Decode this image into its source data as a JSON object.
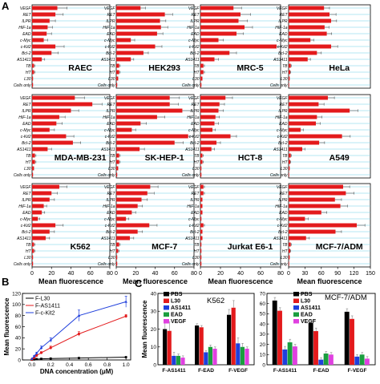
{
  "panel_labels": {
    "A": "A",
    "B": "B",
    "C": "C"
  },
  "chart_data": [
    {
      "type": "bar",
      "orientation": "horizontal",
      "panel": "A",
      "categories": [
        "VEGF",
        "RET",
        "ILPR",
        "HIF-1a",
        "EAD",
        "c-Myc",
        "c-Kit2",
        "Bcl-2",
        "AS1411",
        "TB",
        "HT",
        "L30",
        "Cells only"
      ],
      "xlabel": "Mean fluorescence",
      "grid": true,
      "bar_color": "#e31a1c",
      "grid_color": "#6fd0e8",
      "columns": [
        {
          "xlim": [
            0,
            80
          ],
          "xticks": [
            "0",
            "20",
            "40",
            "60",
            "80"
          ]
        },
        {
          "xlim": [
            0,
            80
          ],
          "xticks": [
            "0",
            "20",
            "40",
            "60",
            "80"
          ]
        },
        {
          "xlim": [
            0,
            80
          ],
          "xticks": [
            "0",
            "20",
            "40",
            "60",
            "80"
          ]
        },
        {
          "xlim": [
            0,
            150
          ],
          "xticks": [
            "0",
            "30",
            "60",
            "90",
            "120",
            "150"
          ]
        }
      ],
      "panels": [
        {
          "title": "RAEC",
          "values": [
            26,
            24,
            18,
            16,
            15,
            12,
            24,
            20,
            10,
            2,
            2,
            1,
            1
          ],
          "errors": [
            10,
            8,
            6,
            5,
            5,
            4,
            9,
            7,
            3,
            1,
            1,
            0.5,
            0.5
          ]
        },
        {
          "title": "HEK293",
          "values": [
            25,
            50,
            45,
            46,
            42,
            15,
            40,
            28,
            15,
            3,
            3,
            2,
            1
          ],
          "errors": [
            5,
            8,
            6,
            7,
            6,
            4,
            7,
            5,
            3,
            1,
            1,
            0.5,
            0.5
          ]
        },
        {
          "title": "MRC-5",
          "values": [
            33,
            40,
            38,
            44,
            36,
            18,
            76,
            29,
            14,
            3,
            3,
            2,
            1
          ],
          "errors": [
            8,
            10,
            9,
            8,
            7,
            5,
            7,
            7,
            4,
            1,
            1,
            0.5,
            0.5
          ]
        },
        {
          "title": "HeLa",
          "values": [
            65,
            75,
            78,
            66,
            70,
            40,
            78,
            52,
            35,
            4,
            3,
            2,
            1
          ],
          "errors": [
            10,
            12,
            10,
            8,
            9,
            6,
            12,
            8,
            5,
            1,
            1,
            0.5,
            0.5
          ]
        },
        {
          "title": "MDA-MB-231",
          "values": [
            44,
            62,
            40,
            28,
            25,
            18,
            35,
            42,
            16,
            3,
            3,
            2,
            1
          ],
          "errors": [
            10,
            10,
            8,
            6,
            6,
            5,
            8,
            8,
            4,
            1,
            1,
            0.5,
            0.5
          ]
        },
        {
          "title": "SK-HEP-1",
          "values": [
            55,
            55,
            68,
            42,
            25,
            16,
            74,
            60,
            24,
            3,
            3,
            2,
            1
          ],
          "errors": [
            10,
            9,
            12,
            8,
            6,
            4,
            8,
            9,
            5,
            1,
            1,
            0.5,
            0.5
          ]
        },
        {
          "title": "HCT-8",
          "values": [
            25,
            19,
            18,
            15,
            14,
            12,
            30,
            16,
            11,
            2,
            2,
            1,
            1
          ],
          "errors": [
            7,
            5,
            5,
            4,
            4,
            3,
            6,
            4,
            3,
            1,
            1,
            0.5,
            0.5
          ]
        },
        {
          "title": "A549",
          "values": [
            72,
            55,
            112,
            52,
            50,
            22,
            98,
            56,
            25,
            4,
            3,
            2,
            1
          ],
          "errors": [
            12,
            10,
            15,
            9,
            8,
            5,
            15,
            10,
            5,
            1,
            1,
            0.5,
            0.5
          ]
        },
        {
          "title": "K562",
          "values": [
            28,
            20,
            18,
            12,
            10,
            6,
            24,
            18,
            14,
            2,
            2,
            1,
            1
          ],
          "errors": [
            8,
            6,
            5,
            3,
            3,
            2,
            8,
            5,
            4,
            1,
            1,
            0.5,
            0.5
          ]
        },
        {
          "title": "MCF-7",
          "values": [
            35,
            32,
            26,
            22,
            16,
            10,
            34,
            22,
            14,
            3,
            2,
            1,
            1
          ],
          "errors": [
            8,
            7,
            6,
            5,
            4,
            3,
            8,
            5,
            4,
            1,
            1,
            0.5,
            0.5
          ]
        },
        {
          "title": "Jurkat E6-1",
          "values": [
            3,
            3,
            2,
            2,
            2,
            1,
            3,
            2,
            2,
            1,
            1,
            1,
            1
          ],
          "errors": [
            1,
            1,
            0.5,
            0.5,
            0.5,
            0.3,
            1,
            0.5,
            0.5,
            0.3,
            0.3,
            0.3,
            0.3
          ]
        },
        {
          "title": "MCF-7/ADM",
          "values": [
            100,
            105,
            85,
            95,
            60,
            30,
            125,
            86,
            32,
            4,
            3,
            2,
            1
          ],
          "errors": [
            12,
            15,
            12,
            13,
            10,
            6,
            15,
            11,
            6,
            1,
            1,
            0.5,
            0.5
          ]
        }
      ]
    },
    {
      "type": "line",
      "panel": "B",
      "xlabel": "DNA concentration (μM)",
      "ylabel": "Mean fluorescence",
      "xlim": [
        -0.1,
        1.05
      ],
      "ylim": [
        0,
        120
      ],
      "xticks": [
        "0.0",
        "0.2",
        "0.4",
        "0.6",
        "0.8",
        "1.0"
      ],
      "yticks": [
        "0",
        "20",
        "40",
        "60",
        "80",
        "100",
        "120"
      ],
      "x": [
        0,
        0.025,
        0.05,
        0.1,
        0.2,
        0.5,
        1.0
      ],
      "series": [
        {
          "name": "F-L30",
          "color": "#000000",
          "values": [
            0.5,
            1,
            1.5,
            2,
            2.5,
            3.5,
            5
          ],
          "errors": [
            0,
            0,
            0,
            0,
            0,
            0,
            0
          ]
        },
        {
          "name": "F-AS1411",
          "color": "#e31a1c",
          "values": [
            1,
            4,
            8,
            13,
            22,
            47,
            79
          ],
          "errors": [
            0,
            1,
            1,
            2,
            3,
            4,
            3
          ]
        },
        {
          "name": "F-c-Kit2",
          "color": "#1f3fdc",
          "values": [
            2,
            7,
            12,
            22,
            36,
            80,
            105
          ],
          "errors": [
            0,
            1,
            2,
            3,
            4,
            10,
            10
          ]
        }
      ]
    },
    {
      "type": "bar",
      "panel": "C",
      "title": "K562",
      "ylabel": "Mean fluorescence",
      "ylim": [
        0,
        40
      ],
      "yticks": [
        "0",
        "10",
        "20",
        "30",
        "40"
      ],
      "categories": [
        "F-AS1411",
        "F-EAD",
        "F-VEGF"
      ],
      "series": [
        {
          "name": "PBS",
          "color": "#000000",
          "values": [
            20,
            22,
            28
          ],
          "errors": [
            4,
            1,
            3
          ]
        },
        {
          "name": "L30",
          "color": "#e31a1c",
          "values": [
            19,
            21,
            32
          ],
          "errors": [
            5,
            1,
            4
          ]
        },
        {
          "name": "AS1411",
          "color": "#1f3fdc",
          "values": [
            5,
            7,
            12
          ],
          "errors": [
            2,
            1,
            3
          ]
        },
        {
          "name": "EAD",
          "color": "#1a9e3f",
          "values": [
            5,
            10,
            10
          ],
          "errors": [
            1,
            1,
            2
          ]
        },
        {
          "name": "VEGF",
          "color": "#e040e0",
          "values": [
            4,
            9,
            9
          ],
          "errors": [
            1,
            1,
            1
          ]
        }
      ]
    },
    {
      "type": "bar",
      "panel": "C",
      "title": "MCF-7/ADM",
      "ylim": [
        0,
        70
      ],
      "yticks": [
        "0",
        "10",
        "20",
        "30",
        "40",
        "50",
        "60",
        "70"
      ],
      "categories": [
        "F-AS1411",
        "F-EAD",
        "F-VEGF"
      ],
      "series": [
        {
          "name": "PBS",
          "color": "#000000",
          "values": [
            63,
            41,
            52
          ],
          "errors": [
            3,
            3,
            3
          ]
        },
        {
          "name": "L30",
          "color": "#e31a1c",
          "values": [
            53,
            33,
            45
          ],
          "errors": [
            3,
            3,
            3
          ]
        },
        {
          "name": "AS1411",
          "color": "#1f3fdc",
          "values": [
            15,
            5,
            8
          ],
          "errors": [
            3,
            2,
            2
          ]
        },
        {
          "name": "EAD",
          "color": "#1a9e3f",
          "values": [
            22,
            11,
            10
          ],
          "errors": [
            3,
            2,
            2
          ]
        },
        {
          "name": "VEGF",
          "color": "#e040e0",
          "values": [
            18,
            10,
            6
          ],
          "errors": [
            2,
            2,
            2
          ]
        }
      ]
    }
  ]
}
